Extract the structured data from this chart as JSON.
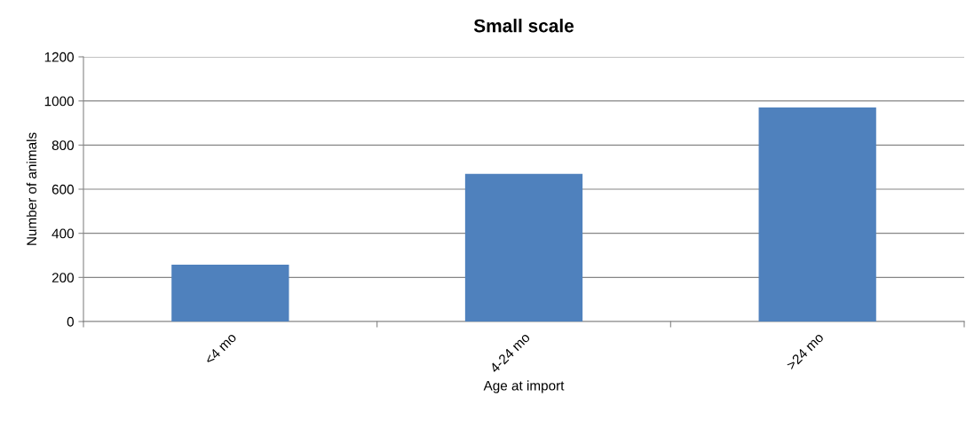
{
  "chart_data": {
    "type": "bar",
    "title": "Small scale",
    "xlabel": "Age at import",
    "ylabel": "Number of animals",
    "categories": [
      "<4 mo",
      "4-24 mo",
      ">24 mo"
    ],
    "values": [
      258,
      669,
      970
    ],
    "color": "#4f81bd",
    "ylim": [
      0,
      1200
    ],
    "yticks": [
      0,
      200,
      400,
      600,
      800,
      1000,
      1200
    ],
    "grid": "y"
  }
}
